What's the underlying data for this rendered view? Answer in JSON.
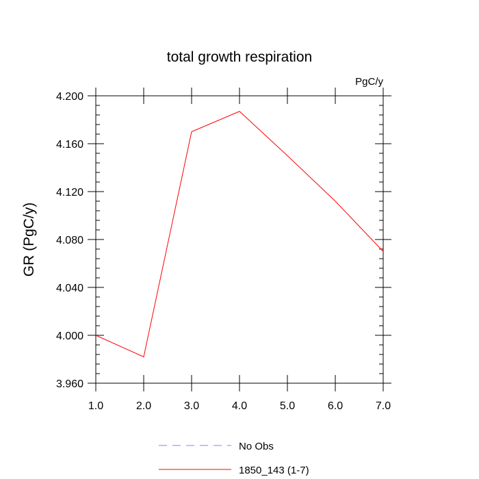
{
  "chart_data": {
    "type": "line",
    "title": "total growth respiration",
    "units_label": "PgC/y",
    "ylabel": "GR  (PgC/y)",
    "xlabel": "",
    "xlim": [
      1.0,
      7.0
    ],
    "ylim": [
      3.96,
      4.2
    ],
    "x_ticks": [
      "1.0",
      "2.0",
      "3.0",
      "4.0",
      "5.0",
      "6.0",
      "7.0"
    ],
    "y_ticks": [
      "3.960",
      "4.000",
      "4.040",
      "4.080",
      "4.120",
      "4.160",
      "4.200"
    ],
    "grid": false,
    "legend_position": "bottom",
    "series": [
      {
        "name": "1850_143 (1-7)",
        "color": "#ff0000",
        "dash": "solid",
        "x": [
          1,
          2,
          3,
          4,
          5,
          6,
          7
        ],
        "values": [
          4.0,
          3.982,
          4.17,
          4.187,
          4.15,
          4.112,
          4.07
        ]
      }
    ],
    "legend": [
      {
        "label": "No Obs",
        "color": "#8080ff",
        "dash": "dashed"
      },
      {
        "label": "1850_143 (1-7)",
        "color": "#ff0000",
        "dash": "solid"
      }
    ]
  }
}
